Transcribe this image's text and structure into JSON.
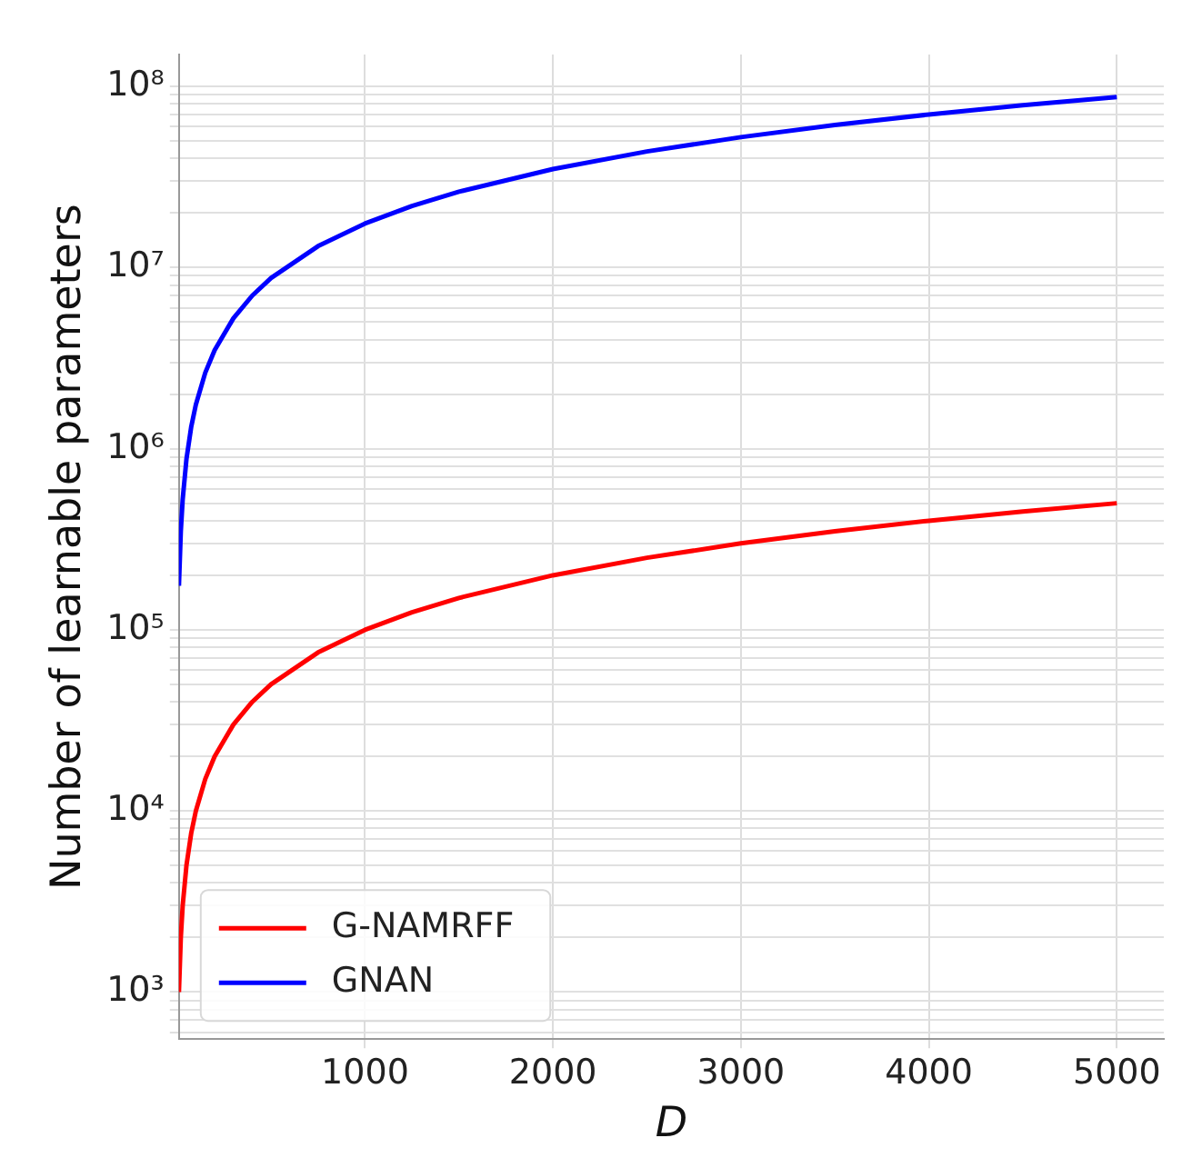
{
  "chart_data": {
    "type": "line",
    "xlabel": "D",
    "ylabel": "Number of learnable parameters",
    "log": "y",
    "grid": true,
    "legend": "bottom left",
    "marker": "none",
    "line_style": "solid",
    "xlim": [
      10,
      5250
    ],
    "xticks": [
      1000,
      2000,
      3000,
      4000,
      5000
    ],
    "ylim": [
      550,
      150000000
    ],
    "yticks": [
      {
        "value": 600,
        "label": null
      },
      {
        "value": 700,
        "label": null
      },
      {
        "value": 800,
        "label": null
      },
      {
        "value": 900,
        "label": null
      },
      {
        "value": 1000,
        "label": "10³"
      },
      {
        "value": 2000,
        "label": null
      },
      {
        "value": 3000,
        "label": null
      },
      {
        "value": 4000,
        "label": null
      },
      {
        "value": 5000,
        "label": null
      },
      {
        "value": 6000,
        "label": null
      },
      {
        "value": 7000,
        "label": null
      },
      {
        "value": 8000,
        "label": null
      },
      {
        "value": 9000,
        "label": null
      },
      {
        "value": 10000,
        "label": "10⁴"
      },
      {
        "value": 20000,
        "label": null
      },
      {
        "value": 30000,
        "label": null
      },
      {
        "value": 40000,
        "label": null
      },
      {
        "value": 50000,
        "label": null
      },
      {
        "value": 60000,
        "label": null
      },
      {
        "value": 70000,
        "label": null
      },
      {
        "value": 80000,
        "label": null
      },
      {
        "value": 90000,
        "label": null
      },
      {
        "value": 100000,
        "label": "10⁵"
      },
      {
        "value": 200000,
        "label": null
      },
      {
        "value": 300000,
        "label": null
      },
      {
        "value": 400000,
        "label": null
      },
      {
        "value": 500000,
        "label": null
      },
      {
        "value": 600000,
        "label": null
      },
      {
        "value": 700000,
        "label": null
      },
      {
        "value": 800000,
        "label": null
      },
      {
        "value": 900000,
        "label": null
      },
      {
        "value": 1000000,
        "label": "10⁶"
      },
      {
        "value": 2000000,
        "label": null
      },
      {
        "value": 3000000,
        "label": null
      },
      {
        "value": 4000000,
        "label": null
      },
      {
        "value": 5000000,
        "label": null
      },
      {
        "value": 6000000,
        "label": null
      },
      {
        "value": 7000000,
        "label": null
      },
      {
        "value": 8000000,
        "label": null
      },
      {
        "value": 9000000,
        "label": null
      },
      {
        "value": 10000000,
        "label": "10⁷"
      },
      {
        "value": 20000000,
        "label": null
      },
      {
        "value": 30000000,
        "label": null
      },
      {
        "value": 40000000,
        "label": null
      },
      {
        "value": 50000000,
        "label": null
      },
      {
        "value": 60000000,
        "label": null
      },
      {
        "value": 70000000,
        "label": null
      },
      {
        "value": 80000000,
        "label": null
      },
      {
        "value": 90000000,
        "label": null
      },
      {
        "value": 100000000,
        "label": "10⁸"
      }
    ],
    "x": [
      10,
      20,
      30,
      50,
      75,
      100,
      150,
      200,
      300,
      400,
      500,
      750,
      1000,
      1250,
      1500,
      2000,
      2500,
      3000,
      3500,
      4000,
      4500,
      5000
    ],
    "series": [
      {
        "name": "G-NAMRFF",
        "color": "#ff0000",
        "values": [
          1000,
          2000,
          3000,
          5000,
          7500,
          10000,
          15000,
          20000,
          30000,
          40000,
          50000,
          75000,
          100000,
          125000,
          150000,
          200000,
          250000,
          300000,
          350000,
          400000,
          450000,
          500000
        ]
      },
      {
        "name": "GNAN",
        "color": "#0000ff",
        "values": [
          175000,
          350000,
          525000,
          875000,
          1312500,
          1750000,
          2625000,
          3500000,
          5250000,
          7000000,
          8750000,
          13125000,
          17500000,
          21875000,
          26250000,
          35000000,
          43750000,
          52500000,
          61250000,
          70000000,
          78750000,
          87500000
        ]
      }
    ]
  }
}
